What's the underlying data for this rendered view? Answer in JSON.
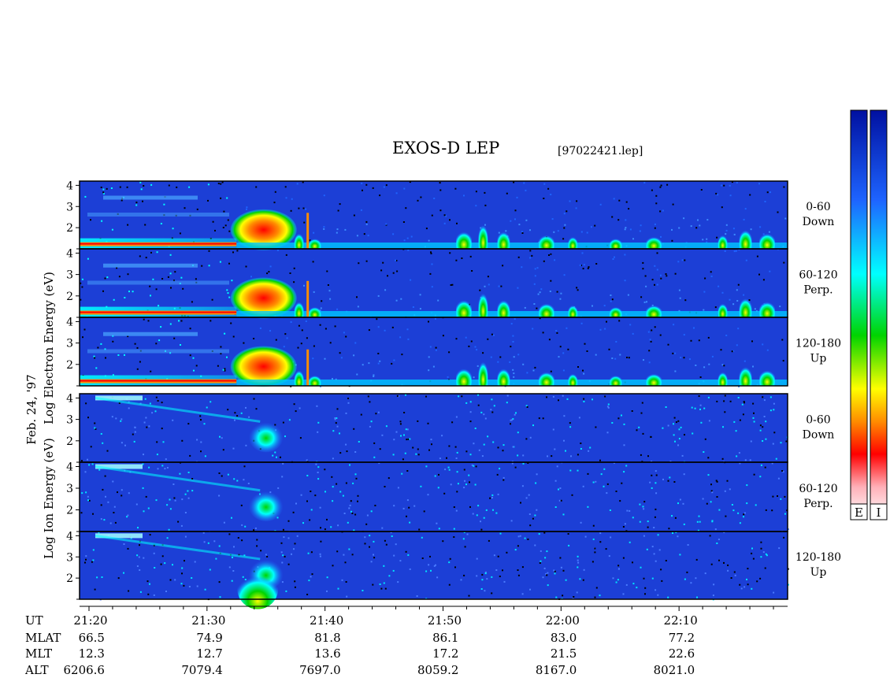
{
  "title": "EXOS-D LEP",
  "filename": "[97022421.lep]",
  "date_label": "Feb. 24, '97",
  "electron_ylabel": "Log  Electron  Energy  (eV)",
  "ion_ylabel": "Log  Ion  Energy  (eV)",
  "colorbar_labels": [
    "E",
    "I"
  ],
  "colors": {
    "spectrogram_bg": "#1c3fd6",
    "colorbar": [
      "#ffffff",
      "#ffb0b8",
      "#ff0000",
      "#ff8c00",
      "#ffff00",
      "#00d400",
      "#00ffff",
      "#1e64ff",
      "#0010a0"
    ]
  },
  "chart_data": {
    "type": "heatmap",
    "x_ticks": [
      "21:20",
      "21:30",
      "21:40",
      "21:50",
      "22:00",
      "22:10"
    ],
    "x_tick_minutes": [
      0,
      10,
      20,
      30,
      40,
      50
    ],
    "x_range_minutes": [
      -0.8,
      59.2
    ],
    "y_ticks": [
      2,
      3,
      4
    ],
    "y_range": [
      1,
      4.2
    ],
    "electron_panels": [
      {
        "angle": "0-60",
        "direction": "Down"
      },
      {
        "angle": "60-120",
        "direction": "Perp."
      },
      {
        "angle": "120-180",
        "direction": "Up"
      }
    ],
    "ion_panels": [
      {
        "angle": "0-60",
        "direction": "Down"
      },
      {
        "angle": "60-120",
        "direction": "Perp."
      },
      {
        "angle": "120-180",
        "direction": "Up"
      }
    ],
    "ephemeris": {
      "labels": [
        "UT",
        "MLAT",
        "MLT",
        "ALT"
      ],
      "MLAT": [
        "66.5",
        "74.9",
        "81.8",
        "86.1",
        "83.0",
        "77.2"
      ],
      "MLT": [
        "12.3",
        "12.7",
        "13.6",
        "17.2",
        "21.5",
        "22.6"
      ],
      "ALT": [
        "6206.6",
        "7079.4",
        "7697.0",
        "8059.2",
        "8167.0",
        "8021.0"
      ]
    }
  }
}
